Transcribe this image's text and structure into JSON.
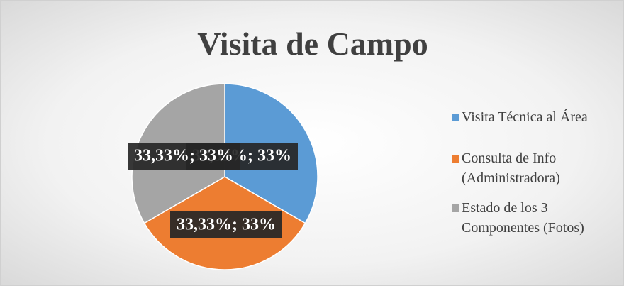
{
  "chart_data": {
    "type": "pie",
    "title": "Visita de Campo",
    "categories": [
      "Visita Técnica al Área",
      "Consulta de Info (Administradora)",
      "Estado de los 3 Componentes (Fotos)"
    ],
    "values": [
      33.33,
      33.33,
      33.33
    ],
    "value_labels": [
      "33,33%; 33%",
      "33,33%; 33%",
      "33,33%; 33%"
    ],
    "colors": [
      "#5b9bd5",
      "#ed7d31",
      "#a5a5a5"
    ],
    "legend": "right"
  }
}
